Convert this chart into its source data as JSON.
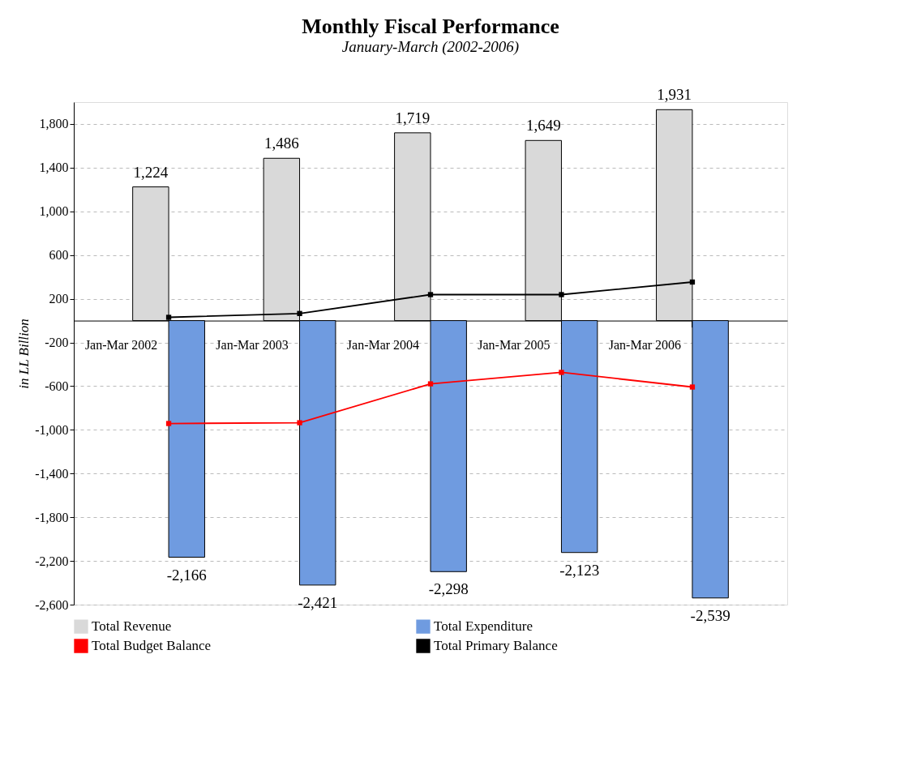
{
  "chart_data": {
    "type": "bar",
    "title": "Monthly Fiscal Performance",
    "subtitle": "January-March (2002-2006)",
    "ylabel": "in LL Billion",
    "categories": [
      "Jan-Mar 2002",
      "Jan-Mar 2003",
      "Jan-Mar 2004",
      "Jan-Mar 2005",
      "Jan-Mar 2006"
    ],
    "series": [
      {
        "name": "Total Revenue",
        "type": "bar",
        "color": "#d9d9d9",
        "values": [
          1224,
          1486,
          1719,
          1649,
          1931
        ],
        "value_labels": [
          "1,224",
          "1,486",
          "1,719",
          "1,649",
          "1,931"
        ]
      },
      {
        "name": "Total Expenditure",
        "type": "bar",
        "color": "#6f9be0",
        "values": [
          -2166,
          -2421,
          -2298,
          -2123,
          -2539
        ],
        "value_labels": [
          "-2,166",
          "-2,421",
          "-2,298",
          "-2,123",
          "-2,539"
        ]
      },
      {
        "name": "Total Budget Balance",
        "type": "line",
        "color": "#ff0000",
        "values": [
          -942,
          -935,
          -579,
          -474,
          -608
        ]
      },
      {
        "name": "Total Primary Balance",
        "type": "line",
        "color": "#000000",
        "values": [
          30,
          65,
          238,
          238,
          353
        ]
      }
    ],
    "ylim": [
      -2600,
      2000
    ],
    "yticks": [
      {
        "value": -2600,
        "label": "-2,600"
      },
      {
        "value": -2200,
        "label": "-2,200"
      },
      {
        "value": -1800,
        "label": "-1,800"
      },
      {
        "value": -1400,
        "label": "-1,400"
      },
      {
        "value": -1000,
        "label": "-1,000"
      },
      {
        "value": -600,
        "label": "-600"
      },
      {
        "value": -200,
        "label": "-200"
      },
      200,
      600,
      {
        "value": 1000,
        "label": "1,000"
      },
      {
        "value": 1400,
        "label": "1,400"
      },
      {
        "value": 1800,
        "label": "1,800"
      }
    ],
    "grid": "y",
    "legend": "bottom",
    "marker": "square"
  }
}
